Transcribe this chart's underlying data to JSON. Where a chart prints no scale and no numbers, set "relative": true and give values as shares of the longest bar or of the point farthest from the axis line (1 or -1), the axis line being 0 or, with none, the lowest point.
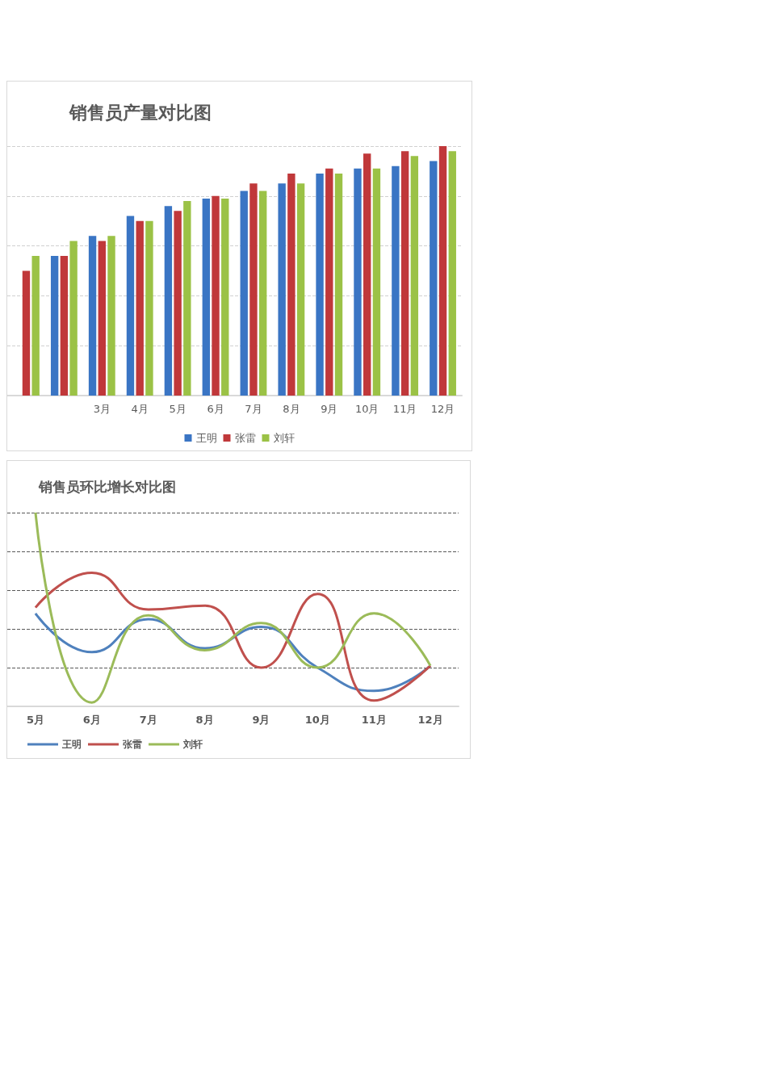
{
  "chart_data": [
    {
      "type": "bar",
      "title": "销售员产量对比图",
      "categories": [
        null,
        null,
        "3月",
        "4月",
        "5月",
        "6月",
        "7月",
        "8月",
        "9月",
        "10月",
        "11月",
        "12月"
      ],
      "relative": true,
      "grid": "y",
      "legend": "bottom",
      "series": [
        {
          "name": "王明",
          "color": "#3a75c4",
          "values": [
            null,
            0.56,
            0.64,
            0.72,
            0.76,
            0.79,
            0.82,
            0.85,
            0.89,
            0.91,
            0.92,
            0.94
          ]
        },
        {
          "name": "张雷",
          "color": "#c0383a",
          "values": [
            0.5,
            0.56,
            0.62,
            0.7,
            0.74,
            0.8,
            0.85,
            0.89,
            0.91,
            0.97,
            0.98,
            1
          ]
        },
        {
          "name": "刘轩",
          "color": "#9bc246",
          "values": [
            0.56,
            0.62,
            0.64,
            0.7,
            0.78,
            0.79,
            0.82,
            0.85,
            0.89,
            0.91,
            0.96,
            0.98
          ]
        }
      ]
    },
    {
      "type": "line",
      "title": "销售员环比增长对比图",
      "categories": [
        "5月",
        "6月",
        "7月",
        "8月",
        "9月",
        "10月",
        "11月",
        "12月"
      ],
      "relative": true,
      "grid": "y",
      "legend": "bottom left",
      "marker": "none",
      "line_style": "solid",
      "series": [
        {
          "name": "王明",
          "color": "#4f81bd",
          "values": [
            0.48,
            0.28,
            0.45,
            0.3,
            0.41,
            0.2,
            0.08,
            0.21
          ]
        },
        {
          "name": "张雷",
          "color": "#c0504d",
          "values": [
            0.51,
            0.69,
            0.5,
            0.52,
            0.2,
            0.58,
            0.03,
            0.21
          ]
        },
        {
          "name": "刘轩",
          "color": "#9bbb59",
          "values": [
            1,
            0.02,
            0.47,
            0.29,
            0.43,
            0.2,
            0.48,
            0.21
          ]
        }
      ]
    }
  ]
}
